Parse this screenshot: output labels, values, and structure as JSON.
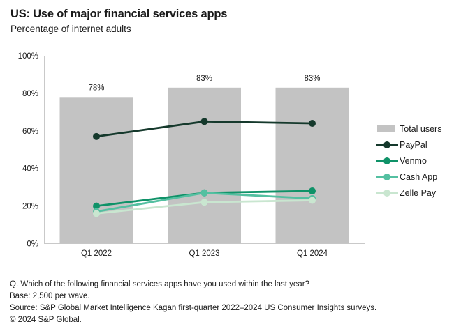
{
  "header": {
    "title": "US: Use of major financial services apps",
    "subtitle": "Percentage of internet adults"
  },
  "chart_data": {
    "type": "combo-bar-line",
    "title": "US: Use of major financial services apps",
    "subtitle": "Percentage of internet adults",
    "categories": [
      "Q1 2022",
      "Q1 2023",
      "Q1 2024"
    ],
    "bar_series": {
      "name": "Total users",
      "values": [
        78,
        83,
        83
      ],
      "labels": [
        "78%",
        "83%",
        "83%"
      ],
      "color": "#c3c3c3"
    },
    "line_series": [
      {
        "name": "PayPal",
        "color": "#15392c",
        "values": [
          57,
          65,
          64
        ]
      },
      {
        "name": "Venmo",
        "color": "#0f9268",
        "values": [
          20,
          27,
          28
        ]
      },
      {
        "name": "Cash App",
        "color": "#54c0a1",
        "values": [
          17,
          27,
          24
        ]
      },
      {
        "name": "Zelle Pay",
        "color": "#c9e6d0",
        "values": [
          16,
          22,
          23
        ]
      }
    ],
    "y_axis": {
      "ticks": [
        0,
        20,
        40,
        60,
        80,
        100
      ],
      "unit": "%",
      "range": [
        0,
        100
      ]
    },
    "axis_color": "#c9c9c9",
    "grid": false,
    "legend_position": "right"
  },
  "legend": {
    "items": [
      {
        "label": "Total users",
        "type": "bar",
        "color": "#c3c3c3"
      },
      {
        "label": "PayPal",
        "type": "line",
        "color": "#15392c"
      },
      {
        "label": "Venmo",
        "type": "line",
        "color": "#0f9268"
      },
      {
        "label": "Cash App",
        "type": "line",
        "color": "#54c0a1"
      },
      {
        "label": "Zelle Pay",
        "type": "line",
        "color": "#c9e6d0"
      }
    ]
  },
  "footnotes": {
    "question": "Q. Which of the following financial services apps have you used within the last year?",
    "base": "Base: 2,500 per wave.",
    "source": "Source: S&P Global Market Intelligence Kagan first-quarter 2022–2024 US Consumer Insights surveys.",
    "copyright": "© 2024 S&P Global."
  }
}
